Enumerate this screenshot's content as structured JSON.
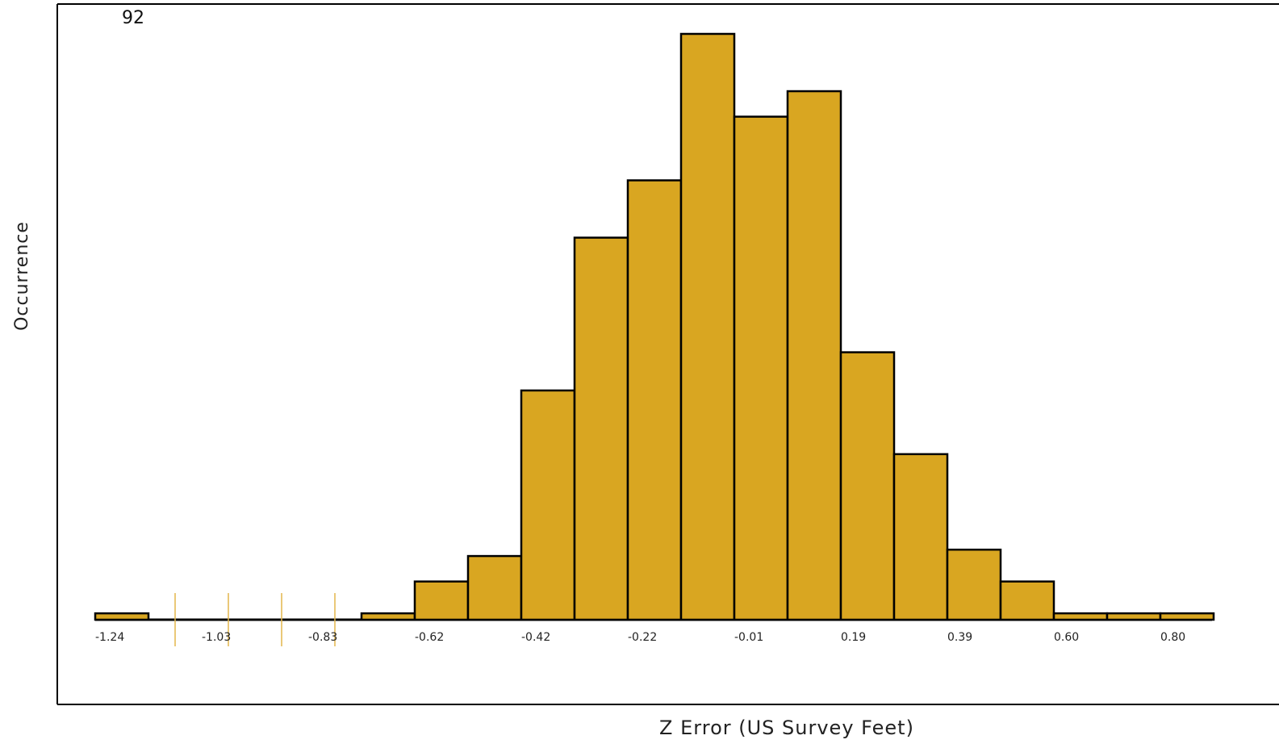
{
  "chart_data": {
    "type": "bar",
    "title": "",
    "xlabel": "Z Error (US Survey Feet)",
    "ylabel": "Occurrence",
    "max_label": "92",
    "ylim": [
      0,
      92
    ],
    "x_ticks": [
      "-1.24",
      "-1.03",
      "-0.83",
      "-0.62",
      "-0.42",
      "-0.22",
      "-0.01",
      "0.19",
      "0.39",
      "0.60",
      "0.80"
    ],
    "bins": [
      {
        "x": -1.24,
        "value": 1
      },
      {
        "x": -1.14,
        "value": 0
      },
      {
        "x": -1.03,
        "value": 0
      },
      {
        "x": -0.93,
        "value": 0
      },
      {
        "x": -0.83,
        "value": 0
      },
      {
        "x": -0.72,
        "value": 1
      },
      {
        "x": -0.62,
        "value": 6
      },
      {
        "x": -0.52,
        "value": 10
      },
      {
        "x": -0.42,
        "value": 36
      },
      {
        "x": -0.32,
        "value": 60
      },
      {
        "x": -0.22,
        "value": 69
      },
      {
        "x": -0.11,
        "value": 92
      },
      {
        "x": -0.01,
        "value": 79
      },
      {
        "x": 0.09,
        "value": 83
      },
      {
        "x": 0.19,
        "value": 42
      },
      {
        "x": 0.29,
        "value": 26
      },
      {
        "x": 0.39,
        "value": 11
      },
      {
        "x": 0.5,
        "value": 6
      },
      {
        "x": 0.6,
        "value": 1
      },
      {
        "x": 0.7,
        "value": 1
      },
      {
        "x": 0.8,
        "value": 1
      }
    ],
    "bar_color": "#D9A621",
    "bar_stroke": "#000000",
    "grid": false,
    "legend": "none"
  }
}
